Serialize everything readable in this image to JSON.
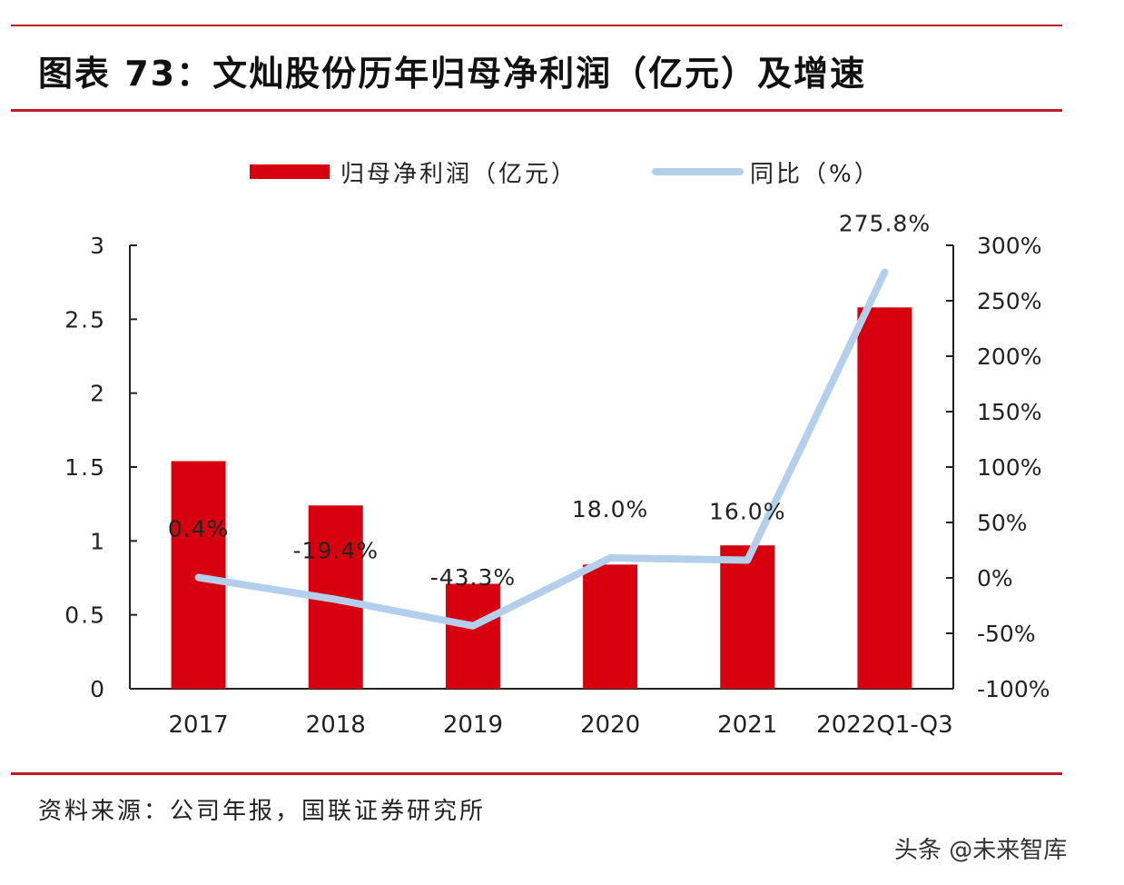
{
  "title": "图表 73：文灿股份历年归母净利润（亿元）及增速",
  "source": "资料来源：公司年报，国联证券研究所",
  "watermark": "头条 @未来智库",
  "colors": {
    "bar": "#d7000f",
    "line": "#b4cfec",
    "rule": "#c0192a"
  },
  "chart_data": {
    "type": "bar+line",
    "categories": [
      "2017",
      "2018",
      "2019",
      "2020",
      "2021",
      "2022Q1-Q3"
    ],
    "series": [
      {
        "name": "归母净利润（亿元）",
        "type": "bar",
        "axis": "left",
        "values": [
          1.54,
          1.24,
          0.71,
          0.84,
          0.97,
          2.58
        ]
      },
      {
        "name": "同比（%）",
        "type": "line",
        "axis": "right",
        "values": [
          0.4,
          -19.4,
          -43.3,
          18.0,
          16.0,
          275.8
        ],
        "labels": [
          "0.4%",
          "-19.4%",
          "-43.3%",
          "18.0%",
          "16.0%",
          "275.8%"
        ]
      }
    ],
    "left_axis": {
      "ylim": [
        0,
        3
      ],
      "ticks": [
        "0",
        "0.5",
        "1",
        "1.5",
        "2",
        "2.5",
        "3"
      ]
    },
    "right_axis": {
      "ylim": [
        -100,
        300
      ],
      "ticks": [
        "-100%",
        "-50%",
        "0%",
        "50%",
        "100%",
        "150%",
        "200%",
        "250%",
        "300%"
      ]
    },
    "legend": "top",
    "grid": false
  }
}
